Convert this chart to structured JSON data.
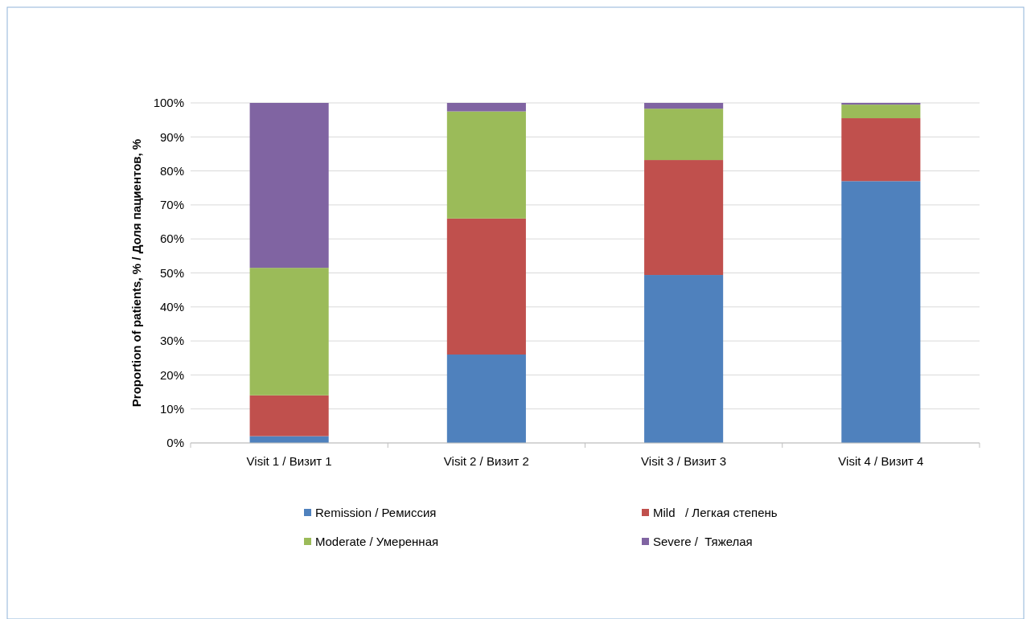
{
  "chart_data": {
    "type": "bar",
    "stacked": true,
    "ylabel": "Proportion of patients, % / Доля пациентов, %",
    "categories": [
      "Visit 1 / Визит 1",
      "Visit 2 / Визит 2",
      "Visit 3 / Визит 3",
      "Visit 4 / Визит 4"
    ],
    "series": [
      {
        "name": "Remission / Ремиссия",
        "color": "#4f81bd",
        "values": [
          2,
          26,
          49.4,
          77
        ]
      },
      {
        "name": "Mild   / Легкая степень",
        "color": "#c0504d",
        "values": [
          12,
          40,
          33.8,
          18.5
        ]
      },
      {
        "name": "Moderate / Умеренная",
        "color": "#9bbb59",
        "values": [
          37.5,
          31.5,
          15.1,
          4
        ]
      },
      {
        "name": "Severe /  Тяжелая",
        "color": "#8064a2",
        "values": [
          48.5,
          2.5,
          1.7,
          0.5
        ]
      }
    ],
    "ylim": [
      0,
      100
    ],
    "yticks": [
      {
        "value": 0,
        "label": "0%"
      },
      {
        "value": 10,
        "label": "10%"
      },
      {
        "value": 20,
        "label": "20%"
      },
      {
        "value": 30,
        "label": "30%"
      },
      {
        "value": 40,
        "label": "40%"
      },
      {
        "value": 50,
        "label": "50%"
      },
      {
        "value": 60,
        "label": "60%"
      },
      {
        "value": 70,
        "label": "70%"
      },
      {
        "value": 80,
        "label": "80%"
      },
      {
        "value": 90,
        "label": "90%"
      },
      {
        "value": 100,
        "label": "100%"
      }
    ],
    "grid": "y",
    "legend": "bottom"
  }
}
